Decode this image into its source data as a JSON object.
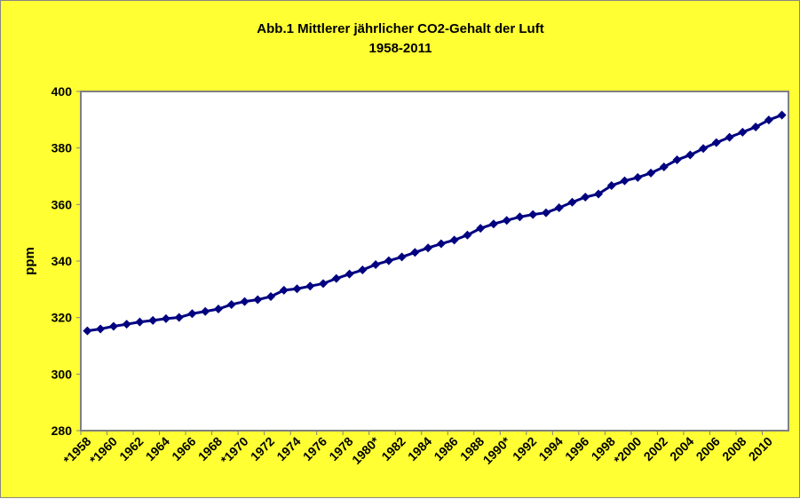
{
  "chart_data": {
    "type": "line",
    "title": "Abb.1 Mittlerer jährlicher CO2-Gehalt der Luft",
    "subtitle": "1958-2011",
    "xlabel": "",
    "ylabel": "ppm",
    "ylim": [
      280,
      400
    ],
    "yticks": [
      280,
      300,
      320,
      340,
      360,
      380,
      400
    ],
    "grid": false,
    "legend": "none",
    "colors": {
      "background": "#ffff33",
      "plot": "#ffffff",
      "series": "#000080"
    },
    "x": [
      1958,
      1959,
      1960,
      1961,
      1962,
      1963,
      1964,
      1965,
      1966,
      1967,
      1968,
      1969,
      1970,
      1971,
      1972,
      1973,
      1974,
      1975,
      1976,
      1977,
      1978,
      1979,
      1980,
      1981,
      1982,
      1983,
      1984,
      1985,
      1986,
      1987,
      1988,
      1989,
      1990,
      1991,
      1992,
      1993,
      1994,
      1995,
      1996,
      1997,
      1998,
      1999,
      2000,
      2001,
      2002,
      2003,
      2004,
      2005,
      2006,
      2007,
      2008,
      2009,
      2010,
      2011
    ],
    "xtick_labels": [
      "*1958",
      "*1960",
      "1962",
      "1964",
      "1966",
      "1968",
      "*1970",
      "1972",
      "1974",
      "1976",
      "1978",
      "1980*",
      "1982",
      "1984",
      "1986",
      "1988",
      "1990*",
      "1992",
      "1994",
      "1996",
      "1998",
      "*2000",
      "2002",
      "2004",
      "2006",
      "2008",
      "2010"
    ],
    "series": [
      {
        "name": "CO2",
        "values": [
          315.3,
          315.97,
          316.91,
          317.64,
          318.45,
          318.99,
          319.62,
          320.04,
          321.38,
          322.16,
          323.04,
          324.62,
          325.68,
          326.32,
          327.45,
          329.68,
          330.18,
          331.11,
          332.04,
          333.83,
          335.4,
          336.84,
          338.75,
          340.11,
          341.45,
          343.05,
          344.65,
          346.12,
          347.42,
          349.19,
          351.57,
          353.12,
          354.39,
          355.61,
          356.45,
          357.1,
          358.83,
          360.82,
          362.61,
          363.73,
          366.7,
          368.38,
          369.55,
          371.14,
          373.28,
          375.8,
          377.52,
          379.8,
          381.9,
          383.79,
          385.6,
          387.43,
          389.9,
          391.65
        ]
      }
    ]
  }
}
